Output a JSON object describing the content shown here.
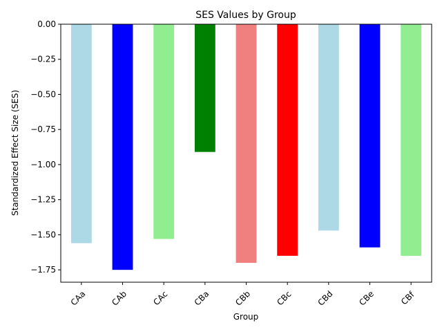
{
  "chart_data": {
    "type": "bar",
    "title": "SES Values by Group",
    "xlabel": "Group",
    "ylabel": "Standardized Effect Size (SES)",
    "categories": [
      "CAa",
      "CAb",
      "CAc",
      "CBa",
      "CBb",
      "CBc",
      "CBd",
      "CBe",
      "CBf"
    ],
    "values": [
      -1.56,
      -1.75,
      -1.53,
      -0.91,
      -1.7,
      -1.65,
      -1.47,
      -1.59,
      -1.65
    ],
    "colors": [
      "#add8e6",
      "#0000ff",
      "#90ee90",
      "#008000",
      "#f08080",
      "#ff0000",
      "#add8e6",
      "#0000ff",
      "#90ee90"
    ],
    "ylim": [
      -1.838,
      0.0
    ],
    "yticks": [
      0.0,
      -0.25,
      -0.5,
      -0.75,
      -1.0,
      -1.25,
      -1.5,
      -1.75
    ],
    "ytick_labels": [
      "0.00",
      "−0.25",
      "−0.50",
      "−0.75",
      "−1.00",
      "−1.25",
      "−1.50",
      "−1.75"
    ],
    "grid": false,
    "legend": false
  }
}
